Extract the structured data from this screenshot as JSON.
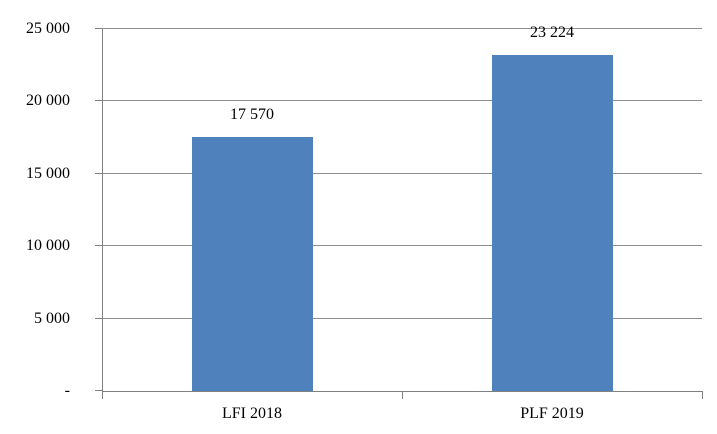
{
  "chart_data": {
    "type": "bar",
    "title": "",
    "xlabel": "",
    "ylabel": "",
    "categories": [
      "LFI 2018",
      "PLF 2019"
    ],
    "values": [
      17570,
      23224
    ],
    "data_labels": [
      "17 570",
      "23 224"
    ],
    "ylim": [
      0,
      25000
    ],
    "ytick_interval": 5000,
    "ytick_values": [
      0,
      5000,
      10000,
      15000,
      20000,
      25000
    ],
    "ytick_labels": [
      "-",
      "5 000",
      "10 000",
      "15 000",
      "20 000",
      "25 000"
    ],
    "grid": true,
    "legend": false,
    "colors": {
      "bar": "#4f81bd",
      "axis": "#808080",
      "gridline": "#8e8e8e",
      "text": "#000000",
      "background": "#ffffff"
    }
  }
}
